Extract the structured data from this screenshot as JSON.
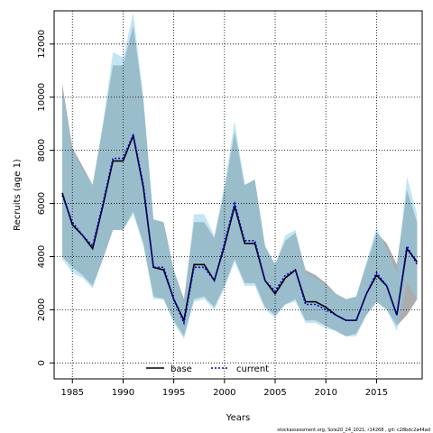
{
  "chart_data": {
    "type": "line",
    "xlabel": "Years",
    "ylabel": "Recruits (age 1)",
    "xlim": [
      1983.2,
      2019.5
    ],
    "ylim": [
      -600,
      13250
    ],
    "x_ticks": [
      1985,
      1990,
      1995,
      2000,
      2005,
      2010,
      2015
    ],
    "y_ticks": [
      0,
      2000,
      4000,
      6000,
      8000,
      10000,
      12000
    ],
    "grid": true,
    "legend_position": "bottom-center",
    "years": [
      1984,
      1985,
      1986,
      1987,
      1988,
      1989,
      1990,
      1991,
      1992,
      1993,
      1994,
      1995,
      1996,
      1997,
      1998,
      1999,
      2000,
      2001,
      2002,
      2003,
      2004,
      2005,
      2006,
      2007,
      2008,
      2009,
      2010,
      2011,
      2012,
      2013,
      2014,
      2015,
      2016,
      2017,
      2018,
      2019
    ],
    "series": [
      {
        "name": "base",
        "color": "#000000",
        "dash": "solid",
        "band_color": "#7f7f7f",
        "values": [
          6400,
          5200,
          4800,
          4300,
          5900,
          7600,
          7600,
          8550,
          6600,
          3600,
          3500,
          2400,
          1600,
          3700,
          3700,
          3100,
          4400,
          5900,
          4500,
          4500,
          3100,
          2600,
          3200,
          3500,
          2300,
          2300,
          2100,
          1800,
          1600,
          1600,
          2600,
          3300,
          2900,
          1800,
          4300,
          3800
        ],
        "upper": [
          10500,
          8100,
          7400,
          6700,
          8900,
          11200,
          11200,
          12700,
          9900,
          5400,
          5300,
          3500,
          2400,
          5300,
          5300,
          4700,
          6500,
          8700,
          6700,
          6900,
          4400,
          3700,
          4600,
          4900,
          3500,
          3300,
          3000,
          2600,
          2400,
          2500,
          3700,
          4900,
          4500,
          3700,
          6500,
          5300
        ],
        "lower": [
          4000,
          3600,
          3300,
          2900,
          3900,
          5000,
          5000,
          5700,
          4500,
          2500,
          2400,
          1600,
          1000,
          2400,
          2500,
          2100,
          2900,
          3900,
          3000,
          3000,
          2100,
          1800,
          2200,
          2400,
          1600,
          1600,
          1400,
          1200,
          1000,
          1100,
          1800,
          2300,
          2000,
          1400,
          1800,
          2400
        ]
      },
      {
        "name": "current",
        "color": "#0000cc",
        "dash": "dotted",
        "band_color": "#87ceeb",
        "values": [
          6300,
          5300,
          4800,
          4400,
          6000,
          7700,
          7700,
          8600,
          6700,
          3600,
          3600,
          2400,
          1500,
          3600,
          3600,
          3100,
          4500,
          6000,
          4600,
          4600,
          3100,
          2700,
          3300,
          3500,
          2200,
          2200,
          2000,
          1800,
          1600,
          1600,
          2600,
          3400,
          2900,
          1800,
          4400,
          3700
        ],
        "upper": [
          10300,
          8000,
          7300,
          6700,
          9000,
          11700,
          11500,
          13200,
          10000,
          5400,
          5300,
          3500,
          2300,
          5600,
          5600,
          4800,
          6700,
          9100,
          6700,
          6900,
          4400,
          3700,
          4800,
          5000,
          3400,
          3200,
          2900,
          2600,
          2400,
          2500,
          3800,
          5100,
          4300,
          3400,
          7000,
          5600
        ],
        "lower": [
          3900,
          3400,
          3200,
          2800,
          3900,
          5000,
          5000,
          5600,
          4400,
          2400,
          2400,
          1500,
          900,
          2300,
          2400,
          2000,
          2800,
          3800,
          2900,
          2900,
          2000,
          1700,
          2200,
          2300,
          1500,
          1500,
          1300,
          1200,
          1000,
          1000,
          1800,
          2300,
          2000,
          1200,
          3000,
          2400
        ]
      }
    ]
  },
  "footer_text": "stockassessment.org,  Sole20_24_2021,  r14268  ,  git:  c28bdc2a44ad"
}
